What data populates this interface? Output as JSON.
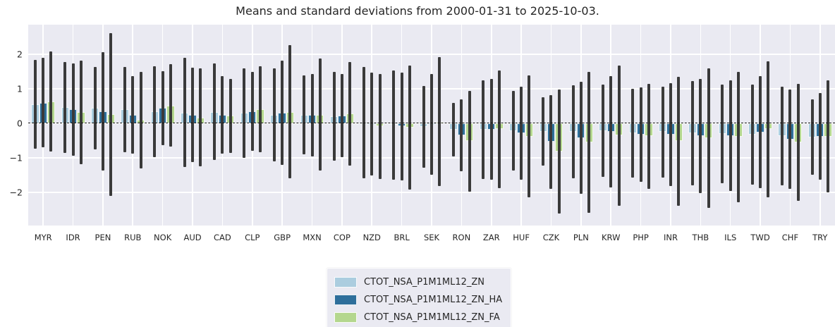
{
  "chart_data": {
    "type": "bar",
    "title": "Means and standard deviations from 2000-01-31 to 2025-10-03.",
    "error_bars": "mean ± standard deviation",
    "categories": [
      "MYR",
      "IDR",
      "PEN",
      "RUB",
      "NOK",
      "AUD",
      "CAD",
      "CLP",
      "GBP",
      "MXN",
      "COP",
      "NZD",
      "BRL",
      "SEK",
      "RON",
      "ZAR",
      "HUF",
      "CZK",
      "PLN",
      "KRW",
      "PHP",
      "INR",
      "THB",
      "ILS",
      "TWD",
      "CHF",
      "TRY"
    ],
    "series": [
      {
        "name": "CTOT_NSA_P1M1ML12_ZN",
        "color": "#abcddf",
        "means": [
          0.55,
          0.46,
          0.44,
          0.4,
          0.34,
          0.31,
          0.33,
          0.3,
          0.25,
          0.25,
          0.2,
          0.02,
          -0.05,
          -0.1,
          -0.18,
          -0.18,
          -0.22,
          -0.24,
          -0.25,
          -0.22,
          -0.29,
          -0.25,
          -0.28,
          -0.3,
          -0.32,
          -0.36,
          -0.4
        ],
        "stds": [
          1.28,
          1.32,
          1.2,
          1.23,
          1.31,
          1.58,
          1.4,
          1.3,
          1.35,
          1.14,
          1.29,
          1.62,
          1.58,
          1.19,
          0.78,
          1.43,
          1.15,
          0.99,
          1.35,
          1.34,
          1.28,
          1.32,
          1.51,
          1.43,
          1.45,
          1.43,
          1.09
        ]
      },
      {
        "name": "CTOT_NSA_P1M1ML12_ZN_HA",
        "color": "#2e6f9b",
        "means": [
          0.6,
          0.4,
          0.35,
          0.25,
          0.44,
          0.25,
          0.25,
          0.35,
          0.3,
          0.24,
          0.23,
          -0.03,
          -0.09,
          -0.04,
          -0.35,
          -0.18,
          -0.28,
          -0.54,
          -0.42,
          -0.25,
          -0.33,
          -0.33,
          -0.37,
          -0.36,
          -0.26,
          -0.46,
          -0.38
        ],
        "stds": [
          1.3,
          1.33,
          1.72,
          1.12,
          1.07,
          1.37,
          1.12,
          1.15,
          1.51,
          1.19,
          1.2,
          1.49,
          1.56,
          1.46,
          1.04,
          1.46,
          1.35,
          1.35,
          1.62,
          1.61,
          1.37,
          1.49,
          1.65,
          1.6,
          1.62,
          1.44,
          1.26
        ]
      },
      {
        "name": "CTOT_NSA_P1M1ML12_ZN_FA",
        "color": "#b4d78e",
        "means": [
          0.63,
          0.32,
          0.26,
          0.1,
          0.52,
          0.17,
          0.22,
          0.41,
          0.33,
          0.25,
          0.28,
          -0.09,
          -0.12,
          0.05,
          -0.52,
          -0.17,
          -0.38,
          -0.82,
          -0.55,
          -0.35,
          -0.37,
          -0.52,
          -0.43,
          -0.39,
          -0.17,
          -0.55,
          -0.38
        ],
        "stds": [
          1.45,
          1.5,
          2.36,
          1.4,
          1.19,
          1.42,
          1.07,
          1.25,
          1.93,
          1.62,
          1.5,
          1.52,
          1.79,
          1.86,
          1.45,
          1.7,
          1.77,
          1.8,
          2.04,
          2.03,
          1.52,
          1.86,
          2.02,
          1.89,
          1.97,
          1.69,
          1.63
        ]
      }
    ],
    "y_ticks": [
      2,
      1,
      0,
      -1,
      -2
    ],
    "ylim": [
      -2.96,
      2.86
    ],
    "zero_line": "dashed black",
    "grid": true,
    "legend_position": "bottom-center"
  },
  "colors": {
    "plot_background": "#eaeaf2",
    "gridline": "#ffffff",
    "error_bar": "#3a3a3a",
    "bar_edge": "#ffffff",
    "text": "#262626",
    "legend_background": "#eaeaf2"
  }
}
